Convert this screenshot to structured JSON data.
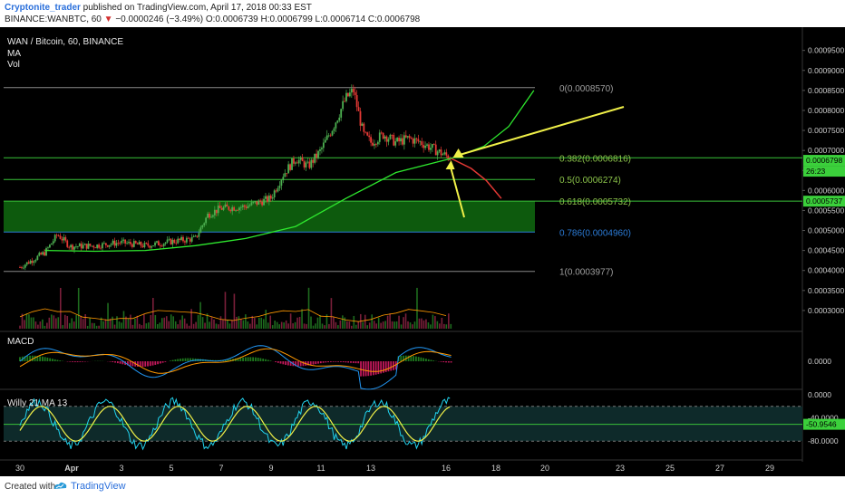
{
  "header": {
    "author": "Cryptonite_trader",
    "published": " published on TradingView.com, April 17, 2018 00:33 EST",
    "symbol_line": "BINANCE:WANBTC, 60",
    "change": "−0.0000246 (−3.49%)",
    "ohlc": "O:0.0006739 H:0.0006799 L:0.0006714 C:0.0006798"
  },
  "footer": {
    "created": "Created with",
    "brand": "TradingView"
  },
  "colors": {
    "background": "#000000",
    "up": "#4caf50",
    "down": "#e53935",
    "ma": "#2ee82e",
    "fib_green": "#39c239",
    "fib_blue": "#2b7bd6",
    "arrow": "#f0f048",
    "macd": "#2196f3",
    "signal": "#ff9800",
    "willy": "#22d3ee",
    "willy_ema": "#f0f048"
  },
  "chart_data": [
    {
      "type": "candlestick",
      "title": "WAN / Bitcoin, 60, BINANCE",
      "legend": [
        "MA",
        "Vol"
      ],
      "x_ticks": [
        "30",
        "Apr",
        "3",
        "5",
        "7",
        "9",
        "11",
        "13",
        "16",
        "18",
        "20",
        "23",
        "25",
        "27",
        "29"
      ],
      "y_ticks": [
        "0.0009500",
        "0.0009000",
        "0.0008500",
        "0.0008000",
        "0.0007500",
        "0.0007000",
        "0.0006500",
        "0.0006000",
        "0.0005500",
        "0.0005000",
        "0.0004500",
        "0.0004000",
        "0.0003500",
        "0.0003000"
      ],
      "ylim": [
        0.00025,
        0.00099
      ],
      "last_price_label": "0.0006798",
      "countdown_label": "26:23",
      "ma_label": "0.0005737",
      "fib_levels": [
        {
          "label": "0(0.0008570)",
          "value": 0.000857
        },
        {
          "label": "0.382(0.0006816)",
          "value": 0.0006816
        },
        {
          "label": "0.5(0.0006274)",
          "value": 0.0006274
        },
        {
          "label": "0.618(0.0005732)",
          "value": 0.0005732
        },
        {
          "label": "0.786(0.0004960)",
          "value": 0.000496
        },
        {
          "label": "1(0.0003977)",
          "value": 0.0003977
        }
      ],
      "price_path": [
        {
          "day": 0,
          "price": 0.000408
        },
        {
          "day": 1,
          "price": 0.000445
        },
        {
          "day": 1.5,
          "price": 0.00049
        },
        {
          "day": 2,
          "price": 0.00046
        },
        {
          "day": 3,
          "price": 0.000462
        },
        {
          "day": 4,
          "price": 0.00047
        },
        {
          "day": 5,
          "price": 0.000462
        },
        {
          "day": 6,
          "price": 0.000472
        },
        {
          "day": 7,
          "price": 0.00048
        },
        {
          "day": 7.5,
          "price": 0.00054
        },
        {
          "day": 8,
          "price": 0.000555
        },
        {
          "day": 9,
          "price": 0.00056
        },
        {
          "day": 10,
          "price": 0.00058
        },
        {
          "day": 10.5,
          "price": 0.00064
        },
        {
          "day": 11,
          "price": 0.00068
        },
        {
          "day": 11.5,
          "price": 0.00066
        },
        {
          "day": 12,
          "price": 0.0007
        },
        {
          "day": 12.5,
          "price": 0.00076
        },
        {
          "day": 13,
          "price": 0.00083
        },
        {
          "day": 13.3,
          "price": 0.00085
        },
        {
          "day": 13.7,
          "price": 0.00074
        },
        {
          "day": 14,
          "price": 0.00072
        },
        {
          "day": 14.5,
          "price": 0.00074
        },
        {
          "day": 15,
          "price": 0.00072
        },
        {
          "day": 15.5,
          "price": 0.00073
        },
        {
          "day": 16,
          "price": 0.00072
        },
        {
          "day": 16.6,
          "price": 0.0007
        },
        {
          "day": 17.2,
          "price": 0.00068
        }
      ],
      "ma": [
        {
          "day": 1,
          "value": 0.00045
        },
        {
          "day": 3,
          "value": 0.000448
        },
        {
          "day": 5,
          "value": 0.00045
        },
        {
          "day": 7,
          "value": 0.000462
        },
        {
          "day": 9,
          "value": 0.00048
        },
        {
          "day": 11,
          "value": 0.00051
        },
        {
          "day": 13,
          "value": 0.00058
        },
        {
          "day": 15,
          "value": 0.000645
        },
        {
          "day": 17.2,
          "value": 0.00068
        },
        {
          "day": 18.5,
          "value": 0.00071
        },
        {
          "day": 19.5,
          "value": 0.00076
        },
        {
          "day": 20.5,
          "value": 0.00085
        }
      ],
      "projection": [
        {
          "day": 17.2,
          "value": 0.00068
        },
        {
          "day": 18,
          "value": 0.000655
        },
        {
          "day": 18.6,
          "value": 0.000625
        },
        {
          "day": 19.2,
          "value": 0.00058
        }
      ]
    },
    {
      "type": "line",
      "title": "MACD",
      "y_ticks": [
        "0.0000"
      ]
    },
    {
      "type": "line",
      "title": "Willy 21 MA 13",
      "y_ticks": [
        "0.0000",
        "-40.0000",
        "-80.0000"
      ],
      "current_label": "-50.9546",
      "ylim": [
        -100,
        0
      ]
    }
  ]
}
